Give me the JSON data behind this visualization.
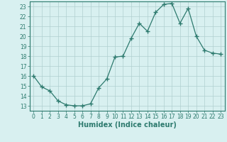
{
  "x": [
    0,
    1,
    2,
    3,
    4,
    5,
    6,
    7,
    8,
    9,
    10,
    11,
    12,
    13,
    14,
    15,
    16,
    17,
    18,
    19,
    20,
    21,
    22,
    23
  ],
  "y": [
    16.0,
    14.9,
    14.5,
    13.5,
    13.1,
    13.0,
    13.0,
    13.2,
    14.8,
    15.7,
    17.9,
    18.0,
    19.8,
    21.3,
    20.5,
    22.4,
    23.2,
    23.3,
    21.3,
    22.8,
    20.0,
    18.6,
    18.3,
    18.2
  ],
  "line_color": "#2d7a6e",
  "marker": "+",
  "marker_size": 4,
  "bg_color": "#d8f0f0",
  "grid_color": "#b0d0d0",
  "axis_color": "#2d7a6e",
  "xlabel": "Humidex (Indice chaleur)",
  "xlim": [
    -0.5,
    23.5
  ],
  "ylim": [
    12.5,
    23.5
  ],
  "yticks": [
    13,
    14,
    15,
    16,
    17,
    18,
    19,
    20,
    21,
    22,
    23
  ],
  "xticks": [
    0,
    1,
    2,
    3,
    4,
    5,
    6,
    7,
    8,
    9,
    10,
    11,
    12,
    13,
    14,
    15,
    16,
    17,
    18,
    19,
    20,
    21,
    22,
    23
  ],
  "tick_fontsize": 5.5,
  "label_fontsize": 7
}
